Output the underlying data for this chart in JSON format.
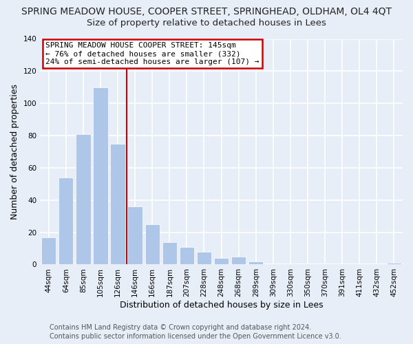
{
  "title": "SPRING MEADOW HOUSE, COOPER STREET, SPRINGHEAD, OLDHAM, OL4 4QT",
  "subtitle": "Size of property relative to detached houses in Lees",
  "xlabel": "Distribution of detached houses by size in Lees",
  "ylabel": "Number of detached properties",
  "bar_labels": [
    "44sqm",
    "64sqm",
    "85sqm",
    "105sqm",
    "126sqm",
    "146sqm",
    "166sqm",
    "187sqm",
    "207sqm",
    "228sqm",
    "248sqm",
    "268sqm",
    "289sqm",
    "309sqm",
    "330sqm",
    "350sqm",
    "370sqm",
    "391sqm",
    "411sqm",
    "432sqm",
    "452sqm"
  ],
  "bar_values": [
    17,
    54,
    81,
    110,
    75,
    36,
    25,
    14,
    11,
    8,
    4,
    5,
    2,
    0,
    0,
    0,
    0,
    0,
    0,
    0,
    1
  ],
  "bar_color": "#aec6e8",
  "bar_edge_color": "#aec6e8",
  "reference_line_color": "#cc0000",
  "ylim": [
    0,
    140
  ],
  "annotation_title": "SPRING MEADOW HOUSE COOPER STREET: 145sqm",
  "annotation_line1": "← 76% of detached houses are smaller (332)",
  "annotation_line2": "24% of semi-detached houses are larger (107) →",
  "annotation_box_color": "#ffffff",
  "annotation_box_edge_color": "#cc0000",
  "footer1": "Contains HM Land Registry data © Crown copyright and database right 2024.",
  "footer2": "Contains public sector information licensed under the Open Government Licence v3.0.",
  "background_color": "#e8eef8",
  "title_fontsize": 10,
  "subtitle_fontsize": 9.5,
  "tick_fontsize": 7.5,
  "ylabel_fontsize": 9,
  "xlabel_fontsize": 9,
  "annotation_fontsize": 8,
  "footer_fontsize": 7
}
